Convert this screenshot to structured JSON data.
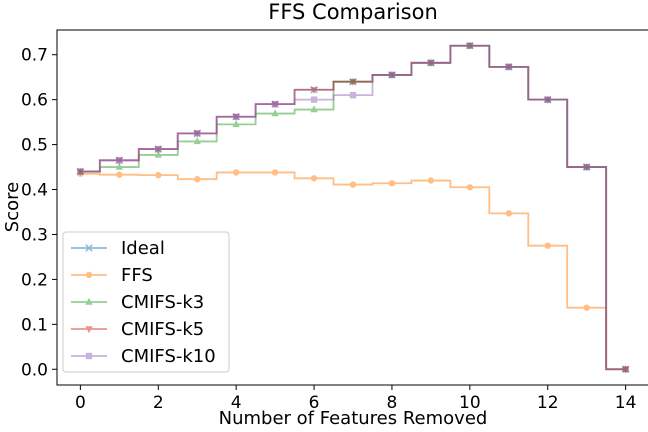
{
  "chart_data": {
    "type": "line",
    "title": "FFS Comparison",
    "xlabel": "Number of Features Removed",
    "ylabel": "Score",
    "xlim": [
      -0.6,
      14.6
    ],
    "ylim": [
      -0.035,
      0.755
    ],
    "xticks": [
      "0",
      "2",
      "4",
      "6",
      "8",
      "10",
      "12",
      "14"
    ],
    "yticks": [
      "0.0",
      "0.1",
      "0.2",
      "0.3",
      "0.4",
      "0.5",
      "0.6",
      "0.7"
    ],
    "grid": false,
    "legend_position": "lower-left",
    "step": "mid",
    "series": [
      {
        "name": "Ideal",
        "color": "#1f77b4",
        "marker": "x",
        "x": [
          0,
          1,
          2,
          3,
          4,
          5,
          6,
          7,
          8,
          9,
          10,
          11,
          12,
          13,
          14
        ],
        "y": [
          0.44,
          0.465,
          0.49,
          0.525,
          0.562,
          0.59,
          0.622,
          0.64,
          0.655,
          0.682,
          0.72,
          0.673,
          0.6,
          0.45,
          0.0
        ]
      },
      {
        "name": "FFS",
        "color": "#ff7f0e",
        "marker": "o",
        "x": [
          0,
          1,
          2,
          3,
          4,
          5,
          6,
          7,
          8,
          9,
          10,
          11,
          12,
          13,
          14
        ],
        "y": [
          0.435,
          0.433,
          0.432,
          0.423,
          0.438,
          0.438,
          0.425,
          0.411,
          0.414,
          0.42,
          0.405,
          0.347,
          0.275,
          0.137,
          0.0
        ]
      },
      {
        "name": "CMIFS-k3",
        "color": "#2ca02c",
        "marker": "^",
        "x": [
          0,
          1,
          2,
          3,
          4,
          5,
          6,
          7,
          8,
          9,
          10,
          11,
          12,
          13,
          14
        ],
        "y": [
          0.44,
          0.45,
          0.477,
          0.507,
          0.545,
          0.569,
          0.578,
          0.64,
          0.655,
          0.682,
          0.72,
          0.673,
          0.6,
          0.45,
          0.0
        ]
      },
      {
        "name": "CMIFS-k5",
        "color": "#d62728",
        "marker": "v",
        "x": [
          0,
          1,
          2,
          3,
          4,
          5,
          6,
          7,
          8,
          9,
          10,
          11,
          12,
          13,
          14
        ],
        "y": [
          0.44,
          0.465,
          0.49,
          0.525,
          0.562,
          0.59,
          0.622,
          0.64,
          0.655,
          0.682,
          0.72,
          0.673,
          0.6,
          0.45,
          0.0
        ]
      },
      {
        "name": "CMIFS-k10",
        "color": "#9467bd",
        "marker": "s",
        "x": [
          0,
          1,
          2,
          3,
          4,
          5,
          6,
          7,
          8,
          9,
          10,
          11,
          12,
          13,
          14
        ],
        "y": [
          0.44,
          0.465,
          0.49,
          0.525,
          0.562,
          0.59,
          0.6,
          0.61,
          0.655,
          0.682,
          0.72,
          0.673,
          0.6,
          0.45,
          0.0
        ]
      }
    ]
  }
}
